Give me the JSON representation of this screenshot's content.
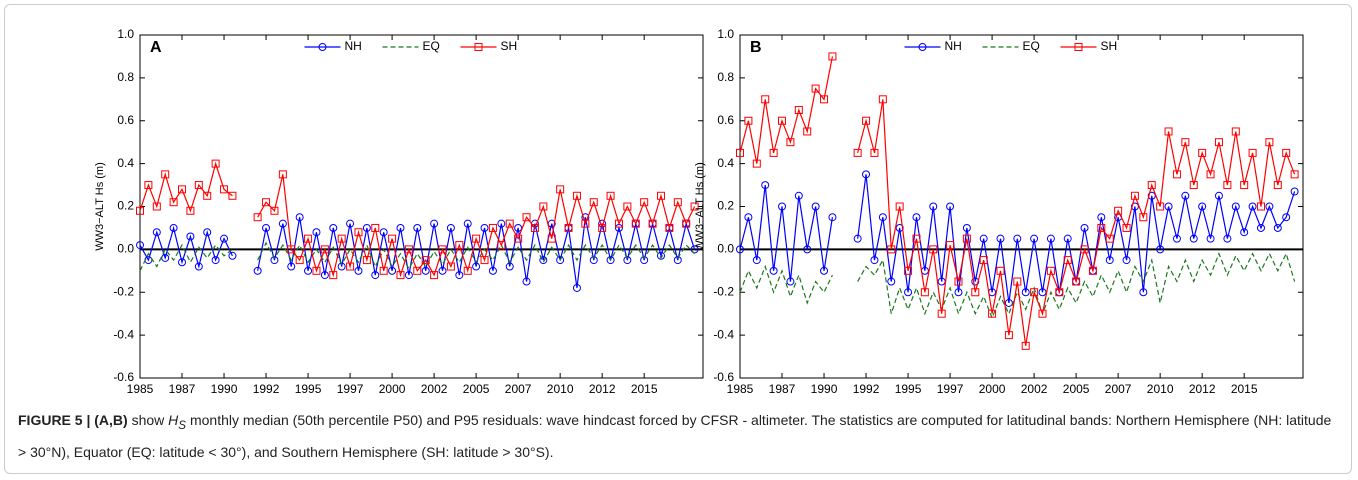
{
  "chart_data": [
    {
      "type": "line",
      "panel_label": "A",
      "ylabel": "WW3−ALT Hs (m)",
      "xlim": [
        1985,
        2018.5
      ],
      "ylim": [
        -0.6,
        1.0
      ],
      "xticks": [
        1985,
        {
          "value": 1987.5,
          "label": "1987"
        },
        1990,
        {
          "value": 1992.5,
          "label": "1992"
        },
        1995,
        {
          "value": 1997.5,
          "label": "1997"
        },
        2000,
        {
          "value": 2002.5,
          "label": "2002"
        },
        2005,
        {
          "value": 2007.5,
          "label": "2007"
        },
        2010,
        {
          "value": 2012.5,
          "label": "2012"
        },
        2015
      ],
      "yticks": [
        {
          "value": 1.0,
          "label": "1.0"
        },
        0.8,
        0.6,
        0.4,
        0.2,
        {
          "value": 0,
          "label": "0.0"
        },
        -0.2,
        -0.4,
        -0.6
      ],
      "zero_line": true,
      "legend": "upper center",
      "x": [
        1985,
        1985.5,
        1986,
        1986.5,
        1987,
        1987.5,
        1988,
        1988.5,
        1989,
        1989.5,
        1990,
        1990.5,
        1991,
        1991.5,
        1992,
        1992.5,
        1993,
        1993.5,
        1994,
        1994.5,
        1995,
        1995.5,
        1996,
        1996.5,
        1997,
        1997.5,
        1998,
        1998.5,
        1999,
        1999.5,
        2000,
        2000.5,
        2001,
        2001.5,
        2002,
        2002.5,
        2003,
        2003.5,
        2004,
        2004.5,
        2005,
        2005.5,
        2006,
        2006.5,
        2007,
        2007.5,
        2008,
        2008.5,
        2009,
        2009.5,
        2010,
        2010.5,
        2011,
        2011.5,
        2012,
        2012.5,
        2013,
        2013.5,
        2014,
        2014.5,
        2015,
        2015.5,
        2016,
        2016.5,
        2017,
        2017.5,
        2018
      ],
      "series": [
        {
          "name": "NH",
          "color": "#0000ff",
          "marker": "circle",
          "dashed": false,
          "values": [
            0.02,
            -0.05,
            0.08,
            -0.04,
            0.1,
            -0.06,
            0.06,
            -0.08,
            0.08,
            -0.05,
            0.05,
            -0.03,
            null,
            null,
            -0.1,
            0.1,
            -0.05,
            0.12,
            -0.08,
            0.15,
            -0.1,
            0.08,
            -0.12,
            0.1,
            -0.08,
            0.12,
            -0.1,
            0.1,
            -0.12,
            0.08,
            -0.1,
            0.1,
            -0.12,
            0.1,
            -0.1,
            0.12,
            -0.1,
            0.1,
            -0.12,
            0.12,
            -0.08,
            0.1,
            -0.1,
            0.12,
            -0.08,
            0.1,
            -0.15,
            0.12,
            -0.05,
            0.12,
            -0.05,
            0.1,
            -0.18,
            0.15,
            -0.05,
            0.12,
            -0.05,
            0.1,
            -0.05,
            0.12,
            -0.05,
            0.12,
            -0.03,
            0.1,
            -0.05,
            0.12,
            0.0
          ]
        },
        {
          "name": "EQ",
          "color": "#1a7a1a",
          "marker": "none",
          "dashed": true,
          "values": [
            -0.1,
            -0.02,
            -0.08,
            0,
            -0.05,
            0.02,
            -0.06,
            0.01,
            -0.04,
            0.02,
            -0.03,
            0.0,
            null,
            null,
            -0.05,
            0.03,
            -0.04,
            0.02,
            -0.05,
            0.02,
            -0.06,
            0.0,
            -0.06,
            0.01,
            -0.07,
            0.0,
            -0.06,
            0.02,
            -0.08,
            0.0,
            -0.08,
            -0.02,
            -0.09,
            -0.02,
            -0.08,
            -0.01,
            -0.07,
            0.0,
            -0.06,
            0.01,
            -0.06,
            0.0,
            -0.05,
            0.02,
            -0.06,
            0.01,
            -0.05,
            0.02,
            -0.06,
            0.01,
            -0.05,
            0.02,
            -0.05,
            0.02,
            -0.04,
            0.02,
            -0.05,
            0.02,
            -0.04,
            0.02,
            -0.04,
            0.02,
            -0.04,
            0.02,
            -0.04,
            0.02,
            -0.02
          ]
        },
        {
          "name": "SH",
          "color": "#ff0000",
          "marker": "square",
          "dashed": false,
          "values": [
            0.18,
            0.3,
            0.2,
            0.35,
            0.22,
            0.28,
            0.18,
            0.3,
            0.25,
            0.4,
            0.28,
            0.25,
            null,
            null,
            0.15,
            0.22,
            0.18,
            0.35,
            0.0,
            -0.05,
            0.05,
            -0.1,
            0.0,
            -0.12,
            0.05,
            -0.08,
            0.08,
            -0.05,
            0.1,
            -0.1,
            0.05,
            -0.12,
            0.0,
            -0.1,
            -0.05,
            -0.12,
            0.0,
            -0.08,
            0.02,
            -0.1,
            0.05,
            -0.05,
            0.1,
            0.02,
            0.12,
            0.05,
            0.15,
            0.1,
            0.2,
            0.05,
            0.28,
            0.1,
            0.25,
            0.12,
            0.22,
            0.1,
            0.25,
            0.12,
            0.2,
            0.12,
            0.22,
            0.12,
            0.25,
            0.1,
            0.22,
            0.12,
            0.2
          ]
        }
      ]
    },
    {
      "type": "line",
      "panel_label": "B",
      "ylabel": "WW3−ALT Hs (m)",
      "xlim": [
        1985,
        2018.5
      ],
      "ylim": [
        -0.6,
        1.0
      ],
      "xticks": [
        1985,
        {
          "value": 1987.5,
          "label": "1987"
        },
        1990,
        {
          "value": 1992.5,
          "label": "1992"
        },
        1995,
        {
          "value": 1997.5,
          "label": "1997"
        },
        2000,
        {
          "value": 2002.5,
          "label": "2002"
        },
        2005,
        {
          "value": 2007.5,
          "label": "2007"
        },
        2010,
        {
          "value": 2012.5,
          "label": "2012"
        },
        2015
      ],
      "yticks": [
        {
          "value": 1.0,
          "label": "1.0"
        },
        0.8,
        0.6,
        0.4,
        0.2,
        {
          "value": 0,
          "label": "0.0"
        },
        -0.2,
        -0.4,
        -0.6
      ],
      "zero_line": true,
      "legend": "upper center",
      "x": [
        1985,
        1985.5,
        1986,
        1986.5,
        1987,
        1987.5,
        1988,
        1988.5,
        1989,
        1989.5,
        1990,
        1990.5,
        1991,
        1991.5,
        1992,
        1992.5,
        1993,
        1993.5,
        1994,
        1994.5,
        1995,
        1995.5,
        1996,
        1996.5,
        1997,
        1997.5,
        1998,
        1998.5,
        1999,
        1999.5,
        2000,
        2000.5,
        2001,
        2001.5,
        2002,
        2002.5,
        2003,
        2003.5,
        2004,
        2004.5,
        2005,
        2005.5,
        2006,
        2006.5,
        2007,
        2007.5,
        2008,
        2008.5,
        2009,
        2009.5,
        2010,
        2010.5,
        2011,
        2011.5,
        2012,
        2012.5,
        2013,
        2013.5,
        2014,
        2014.5,
        2015,
        2015.5,
        2016,
        2016.5,
        2017,
        2017.5,
        2018
      ],
      "series": [
        {
          "name": "NH",
          "color": "#0000ff",
          "marker": "circle",
          "dashed": false,
          "values": [
            0.0,
            0.15,
            -0.05,
            0.3,
            -0.1,
            0.2,
            -0.15,
            0.25,
            0.0,
            0.2,
            -0.1,
            0.15,
            null,
            null,
            0.05,
            0.35,
            -0.05,
            0.15,
            -0.15,
            0.1,
            -0.2,
            0.15,
            -0.1,
            0.2,
            -0.15,
            0.2,
            -0.2,
            0.1,
            -0.15,
            0.05,
            -0.2,
            0.05,
            -0.25,
            0.05,
            -0.2,
            0.05,
            -0.2,
            0.05,
            -0.2,
            0.05,
            -0.15,
            0.1,
            -0.1,
            0.15,
            -0.05,
            0.15,
            -0.05,
            0.2,
            -0.2,
            0.25,
            0.0,
            0.2,
            0.05,
            0.25,
            0.05,
            0.2,
            0.05,
            0.25,
            0.05,
            0.2,
            0.08,
            0.2,
            0.1,
            0.2,
            0.1,
            0.15,
            0.27
          ]
        },
        {
          "name": "EQ",
          "color": "#1a7a1a",
          "marker": "none",
          "dashed": true,
          "values": [
            -0.2,
            -0.1,
            -0.18,
            -0.08,
            -0.2,
            -0.1,
            -0.22,
            -0.12,
            -0.25,
            -0.15,
            -0.2,
            -0.12,
            null,
            null,
            -0.15,
            -0.08,
            -0.12,
            -0.05,
            -0.3,
            -0.18,
            -0.28,
            -0.18,
            -0.3,
            -0.2,
            -0.28,
            -0.18,
            -0.3,
            -0.2,
            -0.3,
            -0.22,
            -0.32,
            -0.22,
            -0.3,
            -0.2,
            -0.28,
            -0.18,
            -0.3,
            -0.2,
            -0.28,
            -0.18,
            -0.25,
            -0.15,
            -0.22,
            -0.12,
            -0.2,
            -0.1,
            -0.2,
            -0.08,
            -0.15,
            -0.05,
            -0.25,
            -0.08,
            -0.15,
            -0.05,
            -0.15,
            -0.05,
            -0.12,
            -0.02,
            -0.12,
            -0.03,
            -0.1,
            -0.02,
            -0.1,
            -0.02,
            -0.1,
            -0.02,
            -0.15
          ]
        },
        {
          "name": "SH",
          "color": "#ff0000",
          "marker": "square",
          "dashed": false,
          "values": [
            0.45,
            0.6,
            0.4,
            0.7,
            0.45,
            0.6,
            0.5,
            0.65,
            0.55,
            0.75,
            0.7,
            0.9,
            null,
            null,
            0.45,
            0.6,
            0.45,
            0.7,
            0.0,
            0.2,
            -0.1,
            0.05,
            -0.2,
            0.0,
            -0.3,
            0.02,
            -0.15,
            0.05,
            -0.2,
            -0.05,
            -0.3,
            -0.1,
            -0.4,
            -0.15,
            -0.45,
            -0.2,
            -0.3,
            -0.1,
            -0.2,
            -0.05,
            -0.15,
            0.0,
            -0.1,
            0.1,
            0.05,
            0.18,
            0.1,
            0.25,
            0.15,
            0.3,
            0.2,
            0.55,
            0.35,
            0.5,
            0.3,
            0.45,
            0.35,
            0.5,
            0.3,
            0.55,
            0.3,
            0.45,
            0.2,
            0.5,
            0.3,
            0.45,
            0.35
          ]
        }
      ]
    }
  ],
  "caption": {
    "label": "FIGURE 5 |",
    "panels": "(A,B)",
    "text_before": "show",
    "symbol": "H",
    "subscript": "S",
    "text_after": "monthly median (50th percentile P50) and P95 residuals: wave hindcast forced by CFSR - altimeter. The statistics are computed for latitudinal bands: Northern Hemisphere (NH: latitude > 30°N), Equator (EQ: latitude < 30°), and Southern Hemisphere (SH: latitude > 30°S)."
  }
}
